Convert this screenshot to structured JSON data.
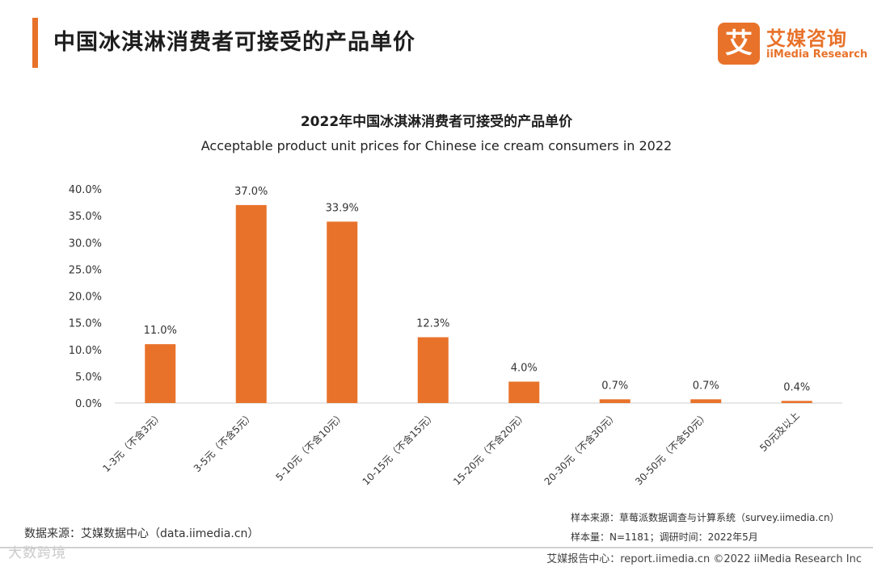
{
  "header": {
    "title": "中国冰淇淋消费者可接受的产品单价",
    "brand_mark": "艾",
    "brand_cn": "艾媒咨询",
    "brand_en": "iiMedia Research",
    "accent_color": "#E8722A"
  },
  "chart_data": {
    "type": "bar",
    "title": "2022年中国冰淇淋消费者可接受的产品单价",
    "subtitle": "Acceptable product unit prices for Chinese ice cream consumers in 2022",
    "categories": [
      "1-3元（不含3元）",
      "3-5元（不含5元）",
      "5-10元（不含10元）",
      "10-15元（不含15元）",
      "15-20元（不含20元）",
      "20-30元（不含30元）",
      "30-50元（不含50元）",
      "50元及以上"
    ],
    "values": [
      11.0,
      37.0,
      33.9,
      12.3,
      4.0,
      0.7,
      0.7,
      0.4
    ],
    "data_labels": [
      "11.0%",
      "37.0%",
      "33.9%",
      "12.3%",
      "4.0%",
      "0.7%",
      "0.7%",
      "0.4%"
    ],
    "y_ticks": [
      0,
      5,
      10,
      15,
      20,
      25,
      30,
      35,
      40
    ],
    "y_tick_labels": [
      "0.0%",
      "5.0%",
      "10.0%",
      "15.0%",
      "20.0%",
      "25.0%",
      "30.0%",
      "35.0%",
      "40.0%"
    ],
    "ylim": [
      0,
      40
    ],
    "xlabel": "",
    "ylabel": "",
    "grid": false,
    "bar_color": "#E8722A"
  },
  "footer": {
    "data_source": "数据来源：艾媒数据中心（data.iimedia.cn）",
    "sample_source": "样本来源：草莓派数据调查与计算系统（survey.iimedia.cn）",
    "sample_size": "样本量：N=1181；调研时间：2022年5月",
    "watermark": "大数跨境",
    "copyright": "艾媒报告中心：report.iimedia.cn  ©2022  iiMedia Research  Inc"
  }
}
